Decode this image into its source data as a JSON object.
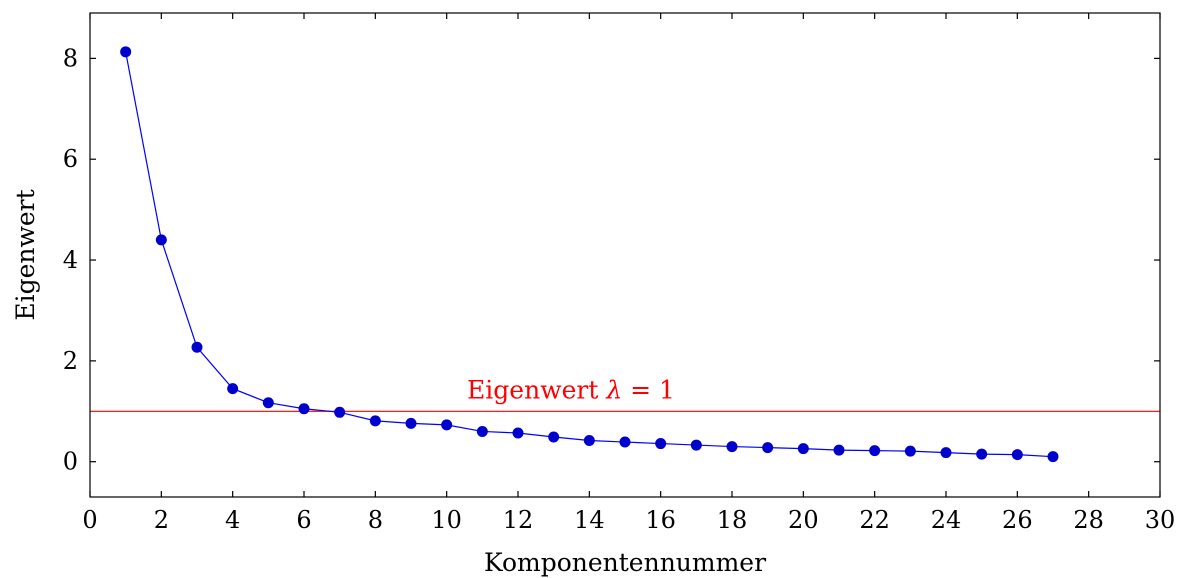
{
  "chart_data": {
    "type": "line",
    "title": "",
    "xlabel": "Komponentennummer",
    "ylabel": "Eigenwert",
    "xlim": [
      0,
      30
    ],
    "ylim": [
      -0.7,
      8.9
    ],
    "xticks": [
      0,
      2,
      4,
      6,
      8,
      10,
      12,
      14,
      16,
      18,
      20,
      22,
      24,
      26,
      28,
      30
    ],
    "yticks": [
      0,
      2,
      4,
      6,
      8
    ],
    "grid": false,
    "series": [
      {
        "color": "#0000ff",
        "marker_color": "#0000cc",
        "x": [
          1,
          2,
          3,
          4,
          5,
          6,
          7,
          8,
          9,
          10,
          11,
          12,
          13,
          14,
          15,
          16,
          17,
          18,
          19,
          20,
          21,
          22,
          23,
          24,
          25,
          26,
          27
        ],
        "y": [
          8.13,
          4.4,
          2.27,
          1.45,
          1.17,
          1.05,
          0.98,
          0.81,
          0.76,
          0.73,
          0.6,
          0.57,
          0.49,
          0.42,
          0.39,
          0.36,
          0.33,
          0.3,
          0.28,
          0.26,
          0.23,
          0.22,
          0.21,
          0.18,
          0.15,
          0.14,
          0.1
        ]
      }
    ],
    "reference_line": {
      "y": 1,
      "color": "#ff0000",
      "label_prefix": "Eigenwert ",
      "label_symbol": "λ",
      "label_suffix": " = 1",
      "label_x": 12
    }
  }
}
